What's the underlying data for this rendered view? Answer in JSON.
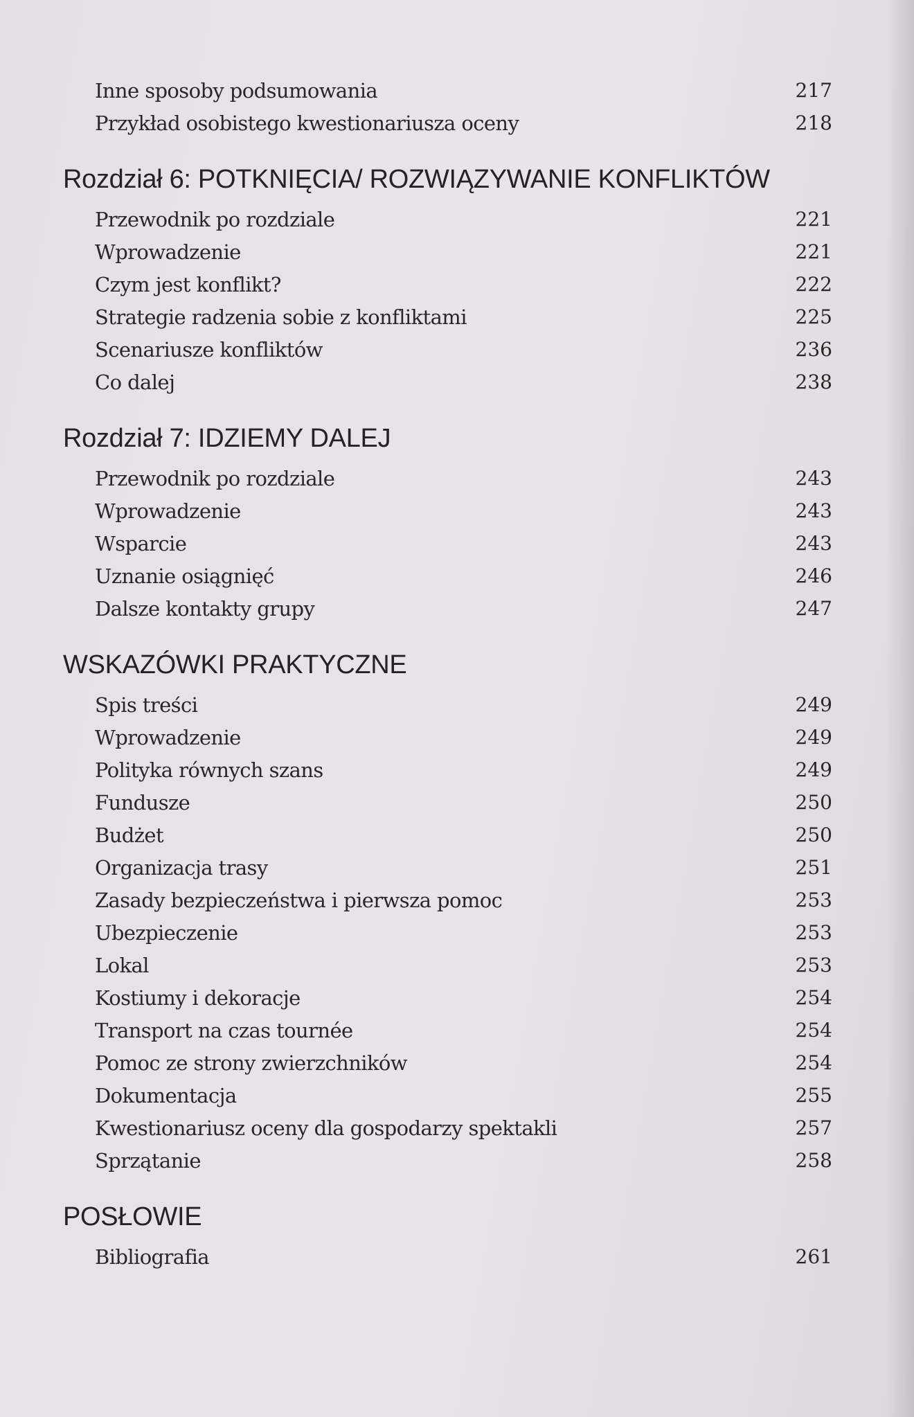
{
  "sections": [
    {
      "heading": "",
      "items": [
        {
          "title": "Inne sposoby podsumowania",
          "page": "217"
        },
        {
          "title": "Przykład osobistego kwestionariusza oceny",
          "page": "218"
        }
      ]
    },
    {
      "heading": "Rozdział 6: POTKNIĘCIA/ ROZWIĄZYWANIE KONFLIKTÓW",
      "items": [
        {
          "title": "Przewodnik po rozdziale",
          "page": "221"
        },
        {
          "title": "Wprowadzenie",
          "page": "221"
        },
        {
          "title": "Czym jest konflikt?",
          "page": "222"
        },
        {
          "title": "Strategie radzenia sobie z konfliktami",
          "page": "225"
        },
        {
          "title": "Scenariusze konfliktów",
          "page": "236"
        },
        {
          "title": "Co dalej",
          "page": "238"
        }
      ]
    },
    {
      "heading": "Rozdział 7: IDZIEMY DALEJ",
      "items": [
        {
          "title": "Przewodnik po rozdziale",
          "page": "243"
        },
        {
          "title": "Wprowadzenie",
          "page": "243"
        },
        {
          "title": "Wsparcie",
          "page": "243"
        },
        {
          "title": "Uznanie osiągnięć",
          "page": "246"
        },
        {
          "title": "Dalsze kontakty grupy",
          "page": "247"
        }
      ]
    },
    {
      "heading": "WSKAZÓWKI PRAKTYCZNE",
      "items": [
        {
          "title": "Spis treści",
          "page": "249"
        },
        {
          "title": "Wprowadzenie",
          "page": "249"
        },
        {
          "title": "Polityka równych szans",
          "page": "249"
        },
        {
          "title": "Fundusze",
          "page": "250"
        },
        {
          "title": "Budżet",
          "page": "250"
        },
        {
          "title": "Organizacja trasy",
          "page": "251"
        },
        {
          "title": "Zasady bezpieczeństwa i pierwsza pomoc",
          "page": "253"
        },
        {
          "title": "Ubezpieczenie",
          "page": "253"
        },
        {
          "title": "Lokal",
          "page": "253"
        },
        {
          "title": "Kostiumy i dekoracje",
          "page": "254"
        },
        {
          "title": "Transport na czas tournée",
          "page": "254"
        },
        {
          "title": "Pomoc ze strony zwierzchników",
          "page": "254"
        },
        {
          "title": "Dokumentacja",
          "page": "255"
        },
        {
          "title": "Kwestionariusz oceny dla gospodarzy spektakli",
          "page": "257"
        },
        {
          "title": "Sprzątanie",
          "page": "258"
        }
      ]
    },
    {
      "heading": "POSŁOWIE",
      "items": [
        {
          "title": "Bibliografia",
          "page": "261"
        }
      ]
    }
  ]
}
